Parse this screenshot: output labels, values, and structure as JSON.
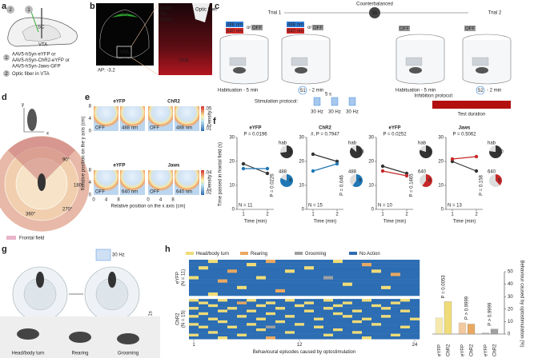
{
  "a": {
    "label": "a",
    "marks": [
      "2",
      "1"
    ],
    "sc": "SC",
    "vta": "VTA",
    "steps": [
      "1",
      "2"
    ],
    "virus": [
      "AAV5-hSyn-eYFP or",
      "AAV5-hSyn-ChR2-eYFP or",
      "AAV5-hSyn-Jaws-GFP"
    ],
    "fiber": "Optic fiber in VTA"
  },
  "b": {
    "label": "b",
    "stains": [
      {
        "text": "DAPI",
        "color": "#4c6ef5"
      },
      {
        "text": "TH",
        "color": "#e03131"
      },
      {
        "text": "eYFP",
        "color": "#37b24d"
      }
    ],
    "sc": "SC",
    "vta": "VTA",
    "ap": "AP: -3.2",
    "fiber": "Optic fiber"
  },
  "c": {
    "label": "c",
    "counter": "Counterbalanced",
    "gap": "3h",
    "trials": [
      "Trial 1",
      "Trial 2"
    ],
    "light": [
      "488 nm",
      "640 nm"
    ],
    "or": "or",
    "off": "OFF",
    "hab": "Habituation - 5 min",
    "tests": [
      "S1",
      "S2"
    ],
    "test_dur": "- 2 min",
    "stim": "Stimulation protocol:",
    "pulse": "5 s",
    "freq": "30 Hz",
    "inhib": "Inhibition protocol:",
    "test_duration": "Test duration"
  },
  "d": {
    "label": "d",
    "axes": [
      "y",
      "x"
    ],
    "angles": [
      "90°",
      "180°",
      "270°",
      "360°"
    ],
    "legend": "Frontal field"
  },
  "e": {
    "label": "e",
    "groups": [
      {
        "name": "eYFP",
        "color": "#222222",
        "tags": [
          "OFF",
          "488 nm"
        ]
      },
      {
        "name": "ChR2",
        "color": "#1f77b4",
        "tags": [
          "OFF",
          "488 nm"
        ]
      },
      {
        "name": "eYFP",
        "color": "#222222",
        "tags": [
          "OFF",
          "640 nm"
        ]
      },
      {
        "name": "Jaws",
        "color": "#c62828",
        "tags": [
          "OFF",
          "640 nm"
        ]
      }
    ],
    "ticks": [
      0,
      4,
      8
    ],
    "ylabel": "Relative position on the y axis (cm)",
    "xlabel": "Relative position on the x axis (cm)",
    "density": "Density",
    "cbar": [
      [
        ".05",
        ".01"
      ],
      [
        ".04",
        ".02"
      ]
    ]
  },
  "f": {
    "label": "f",
    "ylabel": "Time passed in frontal field (s)",
    "xlabel": "Time (min)",
    "ylim": [
      0,
      30
    ],
    "yticks": [
      0,
      10,
      20,
      30
    ],
    "xticks": [
      1,
      2
    ],
    "hab_color": "#333333",
    "plots": [
      {
        "title": "eYFP",
        "title_color": "#222222",
        "color": "#1f77b4",
        "hab": [
          19,
          15
        ],
        "stim": [
          17,
          17
        ],
        "p": "P = 0.0196",
        "p2": "P = 0.0226",
        "n": "N = 11",
        "pie_names": [
          "hab",
          "488"
        ],
        "pies": [
          [
            8,
            3
          ],
          [
            9,
            2
          ]
        ]
      },
      {
        "title": "ChR2",
        "title_color": "#1f77b4",
        "color": "#1f77b4",
        "hab": [
          23,
          20
        ],
        "stim": [
          16,
          19
        ],
        "p": "#, P = 0.7947",
        "p2": "P = 0.046",
        "n": "N = 15",
        "pie_names": [
          "hab",
          "488"
        ],
        "pies": [
          [
            13,
            2
          ],
          [
            9,
            6
          ]
        ]
      },
      {
        "title": "eYFP",
        "title_color": "#222222",
        "color": "#c62828",
        "hab": [
          18,
          15
        ],
        "stim": [
          16,
          14
        ],
        "p": "P = 0.0252",
        "p2": "P = 0.1465",
        "n": "N = 10",
        "pie_names": [
          "hab",
          "640"
        ],
        "pies": [
          [
            8,
            2
          ],
          [
            6,
            4
          ]
        ]
      },
      {
        "title": "Jaws",
        "title_color": "#c62828",
        "color": "#c62828",
        "hab": [
          20,
          16
        ],
        "stim": [
          21,
          22
        ],
        "p": "P = 0.5062",
        "p2": "P = 0.158",
        "n": "N = 13",
        "pie_names": [
          "hab",
          "640"
        ],
        "pies": [
          [
            10,
            3
          ],
          [
            5,
            8
          ]
        ]
      }
    ]
  },
  "g": {
    "label": "g",
    "freq": "30 Hz",
    "delay": "< 1s",
    "behaviours": [
      "Head/body turn",
      "Rearing",
      "Grooming"
    ]
  },
  "h": {
    "label": "h",
    "legend": [
      {
        "name": "Head/body turn",
        "color": "#f0dc78"
      },
      {
        "name": "Rearing",
        "color": "#e9a860"
      },
      {
        "name": "Grooming",
        "color": "#a0a0a0"
      },
      {
        "name": "No Action",
        "color": "#2c6db3"
      }
    ],
    "groups": [
      {
        "name": "eYFP",
        "n": "(N = 11)",
        "rows": [
          [
            3,
            3,
            0,
            3,
            3,
            3,
            3,
            3,
            1,
            3,
            3,
            3,
            3,
            3,
            3,
            0,
            3,
            3,
            3,
            3,
            3,
            3,
            3,
            3
          ],
          [
            3,
            3,
            3,
            3,
            3,
            3,
            0,
            3,
            3,
            3,
            3,
            3,
            3,
            3,
            3,
            3,
            3,
            3,
            1,
            3,
            3,
            3,
            3,
            3
          ],
          [
            3,
            0,
            3,
            3,
            3,
            3,
            3,
            3,
            3,
            3,
            3,
            3,
            0,
            3,
            3,
            3,
            3,
            3,
            3,
            3,
            3,
            3,
            3,
            3
          ],
          [
            3,
            3,
            3,
            3,
            1,
            3,
            3,
            3,
            3,
            3,
            0,
            3,
            3,
            3,
            3,
            3,
            3,
            3,
            3,
            0,
            3,
            3,
            3,
            3
          ],
          [
            3,
            3,
            3,
            3,
            3,
            3,
            3,
            3,
            3,
            3,
            3,
            3,
            3,
            3,
            3,
            3,
            3,
            3,
            3,
            3,
            3,
            1,
            3,
            3
          ],
          [
            0,
            3,
            3,
            3,
            3,
            3,
            3,
            0,
            3,
            3,
            3,
            3,
            3,
            3,
            2,
            3,
            3,
            3,
            3,
            3,
            3,
            3,
            3,
            3
          ],
          [
            3,
            3,
            3,
            1,
            3,
            3,
            3,
            3,
            3,
            3,
            3,
            3,
            3,
            3,
            3,
            3,
            3,
            3,
            3,
            3,
            3,
            3,
            3,
            3
          ],
          [
            3,
            3,
            3,
            3,
            3,
            3,
            3,
            3,
            3,
            3,
            3,
            3,
            3,
            3,
            3,
            3,
            0,
            3,
            3,
            3,
            3,
            3,
            3,
            3
          ],
          [
            3,
            3,
            3,
            3,
            3,
            0,
            3,
            3,
            3,
            3,
            3,
            3,
            3,
            3,
            3,
            3,
            3,
            3,
            3,
            3,
            0,
            3,
            3,
            3
          ],
          [
            3,
            3,
            3,
            3,
            3,
            3,
            3,
            3,
            3,
            1,
            3,
            3,
            3,
            3,
            3,
            3,
            3,
            3,
            3,
            3,
            3,
            3,
            3,
            3
          ],
          [
            3,
            3,
            0,
            3,
            3,
            3,
            3,
            3,
            3,
            3,
            3,
            3,
            3,
            3,
            3,
            3,
            3,
            3,
            3,
            3,
            3,
            3,
            3,
            3
          ]
        ]
      },
      {
        "name": "ChR2",
        "n": "(N = 15)",
        "rows": [
          [
            0,
            3,
            3,
            0,
            3,
            3,
            0,
            3,
            3,
            3,
            0,
            3,
            3,
            3,
            0,
            3,
            3,
            3,
            0,
            3,
            3,
            3,
            0,
            3
          ],
          [
            3,
            0,
            3,
            3,
            3,
            1,
            3,
            3,
            0,
            3,
            3,
            3,
            0,
            3,
            3,
            3,
            0,
            3,
            3,
            3,
            3,
            0,
            3,
            3
          ],
          [
            3,
            3,
            0,
            3,
            3,
            3,
            3,
            0,
            3,
            3,
            3,
            0,
            3,
            3,
            3,
            0,
            3,
            3,
            3,
            0,
            3,
            3,
            3,
            3
          ],
          [
            0,
            3,
            3,
            3,
            0,
            3,
            3,
            3,
            3,
            0,
            3,
            3,
            3,
            3,
            0,
            3,
            3,
            3,
            3,
            3,
            0,
            3,
            3,
            3
          ],
          [
            3,
            3,
            3,
            0,
            3,
            3,
            0,
            3,
            3,
            3,
            3,
            3,
            0,
            3,
            3,
            3,
            3,
            0,
            3,
            3,
            3,
            3,
            0,
            3
          ],
          [
            3,
            0,
            3,
            3,
            3,
            3,
            3,
            3,
            0,
            3,
            3,
            3,
            3,
            3,
            3,
            0,
            3,
            3,
            3,
            3,
            3,
            3,
            3,
            3
          ],
          [
            0,
            3,
            3,
            3,
            3,
            0,
            3,
            3,
            3,
            3,
            0,
            3,
            3,
            3,
            3,
            3,
            0,
            3,
            3,
            3,
            0,
            3,
            3,
            3
          ],
          [
            3,
            3,
            0,
            3,
            3,
            3,
            3,
            0,
            3,
            3,
            3,
            3,
            3,
            0,
            3,
            3,
            3,
            3,
            0,
            3,
            3,
            3,
            3,
            0
          ],
          [
            3,
            3,
            3,
            0,
            3,
            3,
            3,
            3,
            3,
            0,
            3,
            3,
            3,
            3,
            3,
            3,
            3,
            0,
            3,
            3,
            3,
            3,
            3,
            3
          ],
          [
            0,
            3,
            3,
            3,
            3,
            3,
            0,
            3,
            3,
            3,
            3,
            0,
            3,
            3,
            3,
            3,
            3,
            3,
            3,
            0,
            3,
            3,
            3,
            3
          ],
          [
            3,
            0,
            3,
            3,
            0,
            3,
            3,
            3,
            2,
            3,
            3,
            3,
            3,
            0,
            3,
            3,
            3,
            3,
            3,
            3,
            3,
            3,
            0,
            3
          ],
          [
            3,
            3,
            3,
            3,
            3,
            3,
            3,
            0,
            3,
            3,
            3,
            3,
            3,
            3,
            3,
            0,
            3,
            3,
            3,
            3,
            3,
            3,
            3,
            3
          ],
          [
            3,
            3,
            0,
            3,
            3,
            3,
            3,
            3,
            3,
            3,
            0,
            3,
            3,
            3,
            3,
            3,
            3,
            0,
            3,
            3,
            3,
            3,
            3,
            3
          ],
          [
            0,
            3,
            3,
            3,
            3,
            0,
            3,
            3,
            3,
            3,
            3,
            3,
            3,
            3,
            0,
            3,
            3,
            3,
            3,
            3,
            3,
            0,
            3,
            3
          ],
          [
            3,
            3,
            3,
            0,
            3,
            3,
            3,
            3,
            1,
            3,
            3,
            3,
            3,
            3,
            3,
            3,
            3,
            3,
            0,
            3,
            3,
            3,
            3,
            3
          ]
        ]
      }
    ],
    "xticks": [
      1,
      12,
      24
    ],
    "xlabel": "Behavioural episodes caused by optostimulation",
    "bars": {
      "ylabel": "Behaviour caused by optostimulation (%)",
      "ylim": [
        0,
        50
      ],
      "yticks": [
        0,
        10,
        20,
        30,
        40,
        50
      ],
      "names": [
        "eYFP",
        "ChR2"
      ],
      "values": [
        [
          13,
          26
        ],
        [
          9,
          8
        ],
        [
          1,
          4
        ]
      ],
      "p": [
        "P = 0.0053",
        "P > 0.9999",
        "P > 0.9999"
      ]
    }
  }
}
